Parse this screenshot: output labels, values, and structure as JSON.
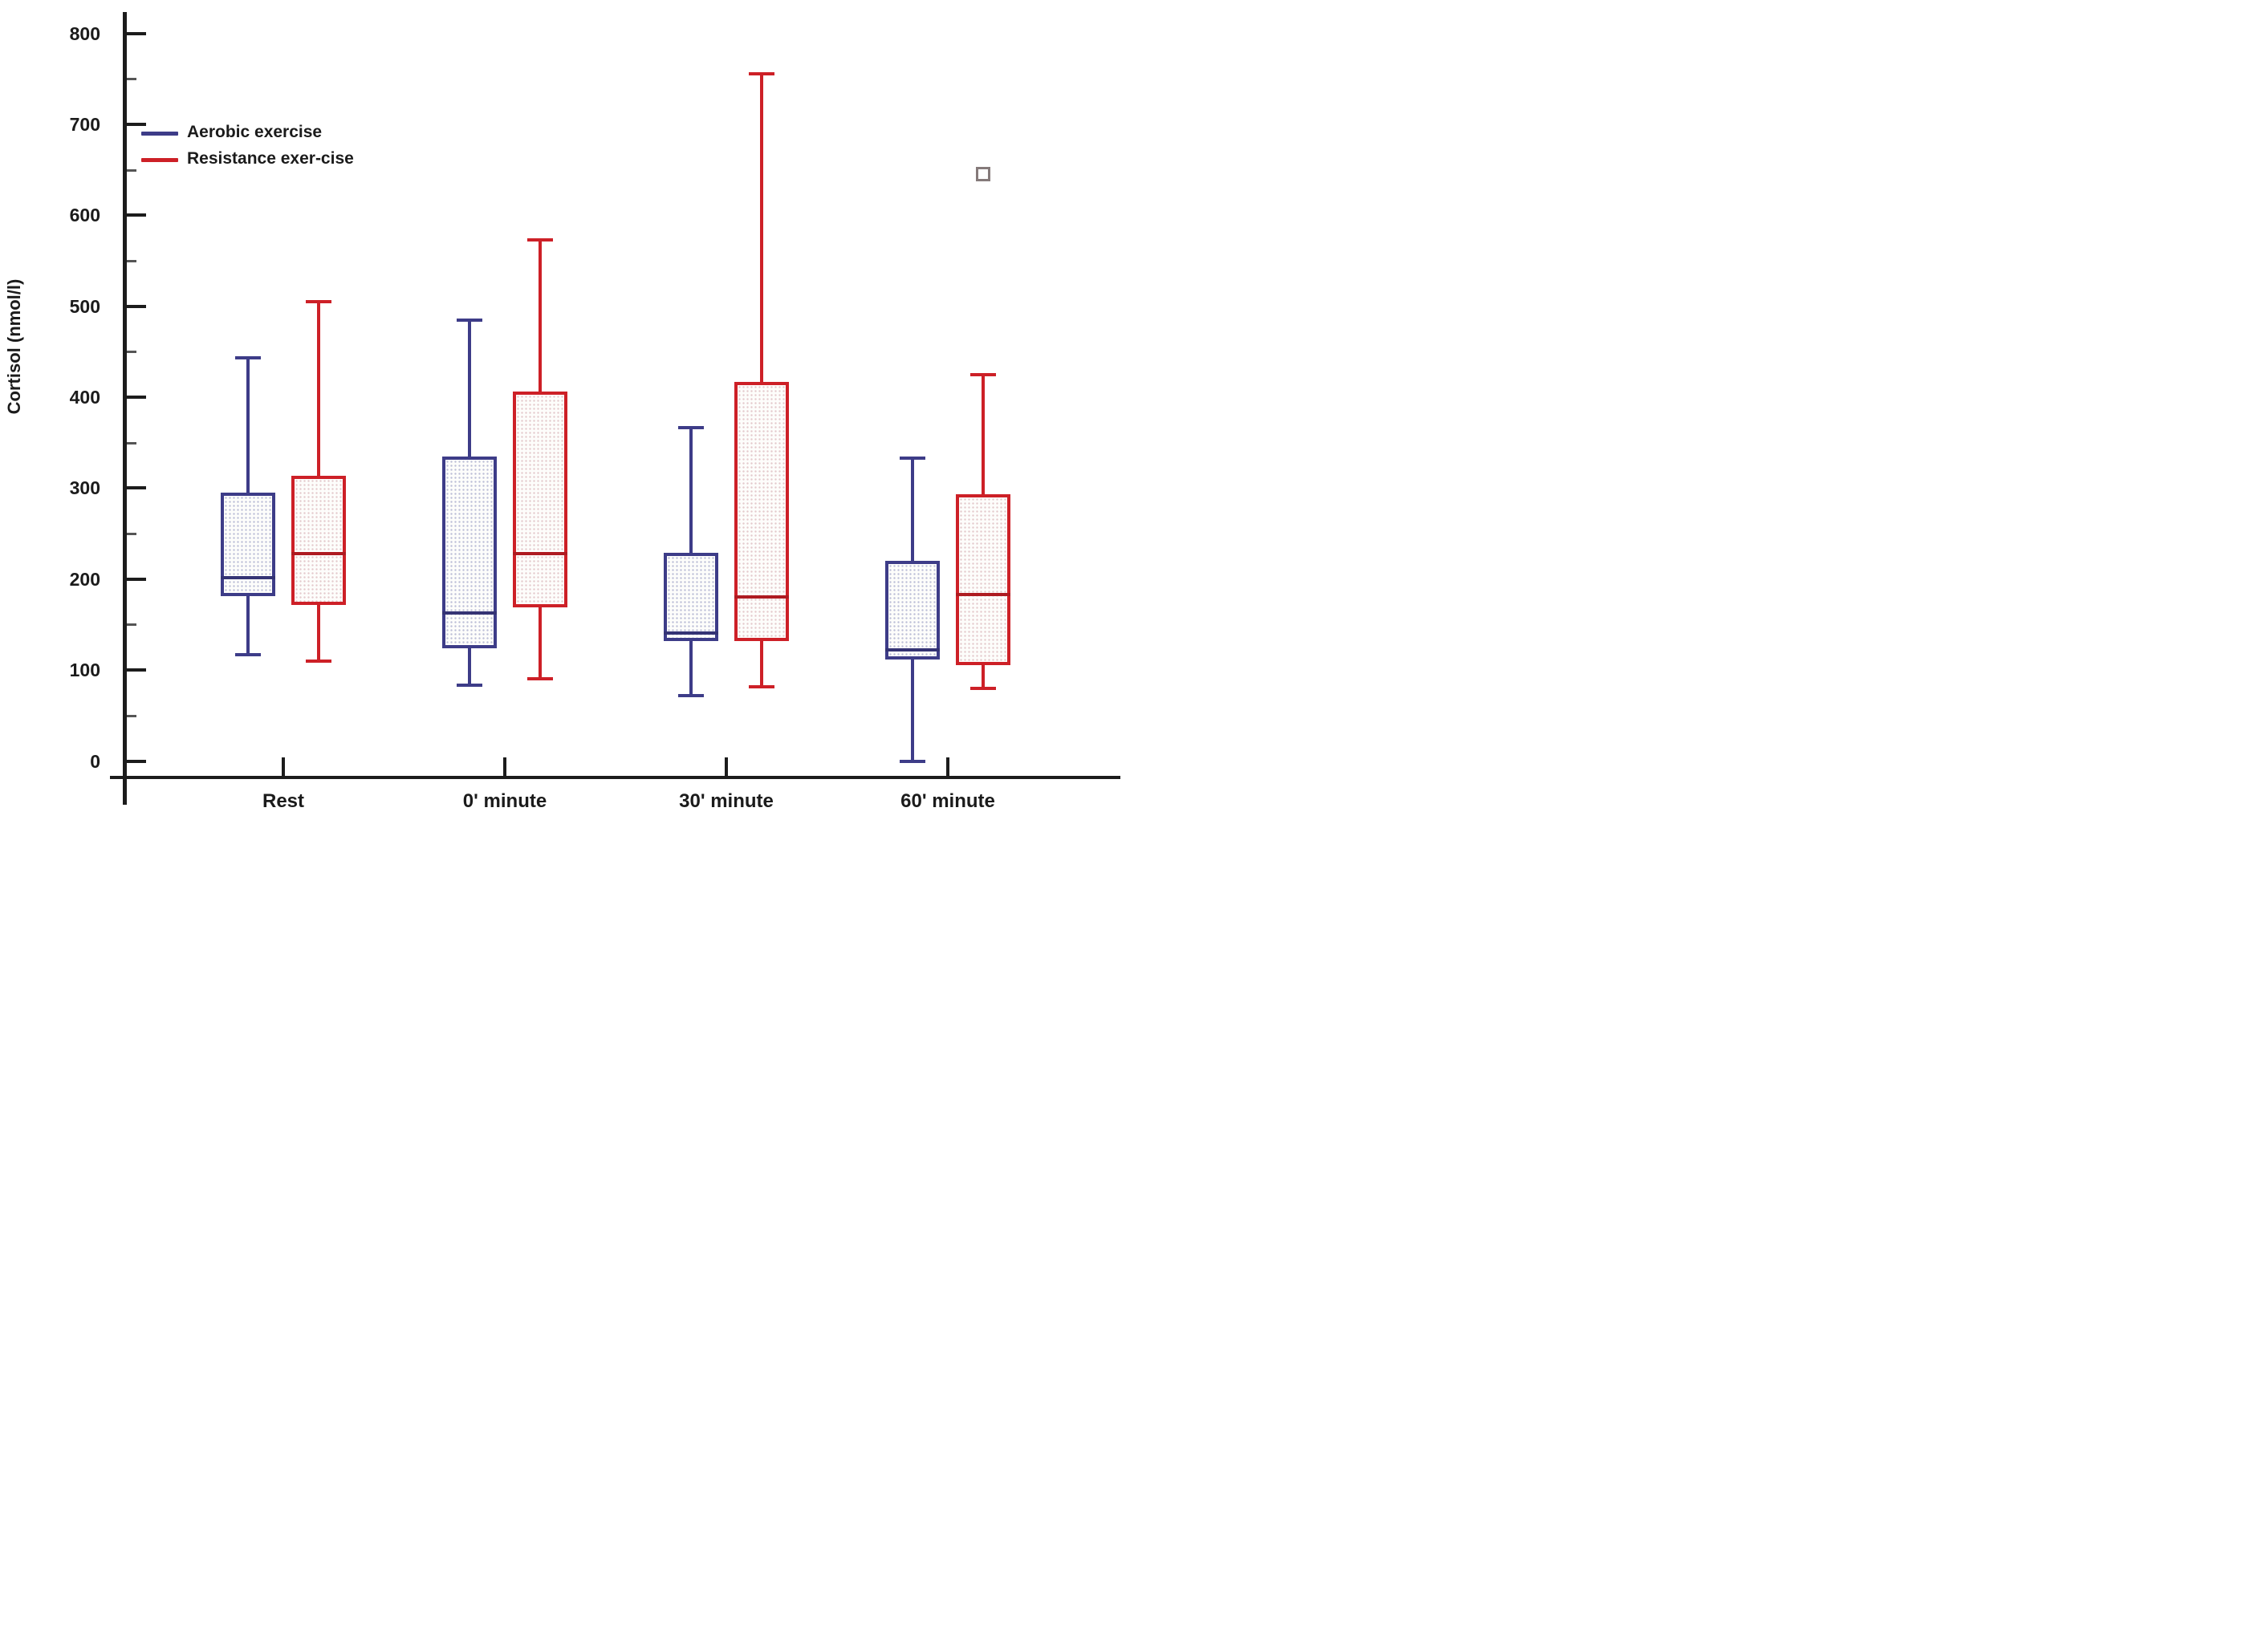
{
  "figure": {
    "y_axis": {
      "title": "Cortisol (nmol/l)",
      "major_ticks": [
        0,
        100,
        200,
        300,
        400,
        500,
        600,
        700,
        800
      ],
      "minor_ticks": [
        50,
        150,
        250,
        350,
        450,
        550,
        650,
        750
      ]
    },
    "x_axis": {
      "categories": [
        "Rest",
        "0' minute",
        "30' minute",
        "60' minute"
      ]
    },
    "legend": {
      "items": [
        {
          "label": "Aerobic exercise",
          "color": "#3d3c88"
        },
        {
          "label": "Resistance exer-cise",
          "color": "#cd2027"
        }
      ]
    },
    "colors": {
      "axis": "#1c1c1c",
      "aerobic": "#3d3c88",
      "resistance": "#cd2027",
      "outlier_marker": "#857a7a"
    }
  },
  "chart_data": {
    "type": "boxplot",
    "title": "",
    "xlabel": "",
    "ylabel": "Cortisol (nmol/l)",
    "ylim": [
      0,
      800
    ],
    "grid": false,
    "legend_position": "upper-left",
    "categories": [
      "Rest",
      "0' minute",
      "30' minute",
      "60' minute"
    ],
    "series": [
      {
        "name": "Aerobic exercise",
        "color": "#3d3c88",
        "boxes": [
          {
            "category": "Rest",
            "whisker_low": 117,
            "q1": 181,
            "median": 202,
            "q3": 295,
            "whisker_high": 443
          },
          {
            "category": "0' minute",
            "whisker_low": 83,
            "q1": 124,
            "median": 163,
            "q3": 335,
            "whisker_high": 485
          },
          {
            "category": "30' minute",
            "whisker_low": 72,
            "q1": 132,
            "median": 141,
            "q3": 229,
            "whisker_high": 367
          },
          {
            "category": "60' minute",
            "whisker_low": 0,
            "q1": 112,
            "median": 122,
            "q3": 220,
            "whisker_high": 333
          }
        ],
        "outliers": []
      },
      {
        "name": "Resistance exer-cise",
        "color": "#cd2027",
        "boxes": [
          {
            "category": "Rest",
            "whisker_low": 110,
            "q1": 172,
            "median": 228,
            "q3": 314,
            "whisker_high": 505
          },
          {
            "category": "0' minute",
            "whisker_low": 90,
            "q1": 169,
            "median": 228,
            "q3": 406,
            "whisker_high": 573
          },
          {
            "category": "30' minute",
            "whisker_low": 82,
            "q1": 132,
            "median": 180,
            "q3": 417,
            "whisker_high": 756
          },
          {
            "category": "60' minute",
            "whisker_low": 80,
            "q1": 105,
            "median": 183,
            "q3": 293,
            "whisker_high": 425
          }
        ],
        "outliers": [
          {
            "category": "60' minute",
            "value": 645,
            "marker": "open-square"
          }
        ]
      }
    ]
  }
}
